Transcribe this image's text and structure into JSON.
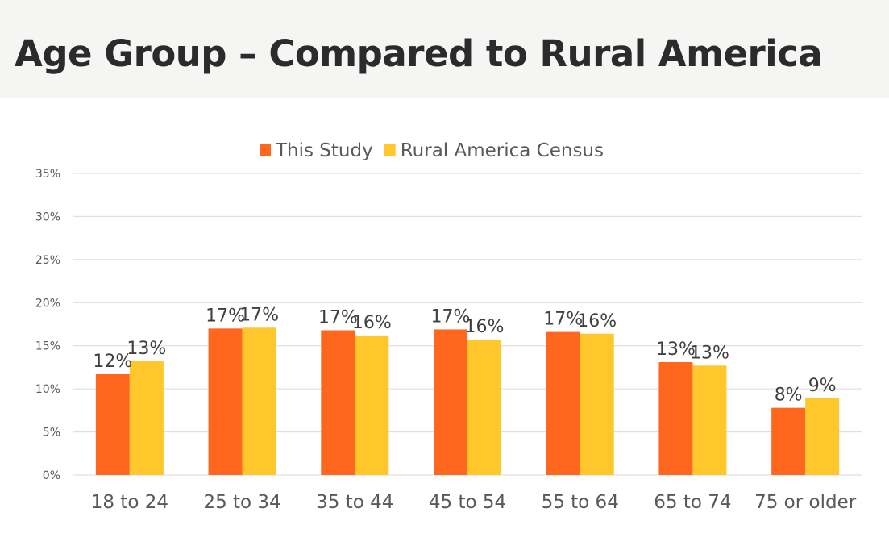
{
  "page": {
    "title": "Age Group – Compared to Rural America"
  },
  "colors": {
    "this_study": "#ff671f",
    "rural_census": "#ffc72c"
  },
  "chart_data": {
    "type": "bar",
    "title": "",
    "xlabel": "",
    "ylabel": "",
    "ylim": [
      0,
      35
    ],
    "yticks": [
      "0%",
      "5%",
      "10%",
      "15%",
      "20%",
      "25%",
      "30%",
      "35%"
    ],
    "grid": true,
    "legend_position": "top",
    "categories": [
      "18 to 24",
      "25 to 34",
      "35 to 44",
      "45 to 54",
      "55 to 64",
      "65 to 74",
      "75 or older"
    ],
    "series": [
      {
        "name": "This Study",
        "values": [
          11.7,
          17.0,
          16.8,
          16.9,
          16.6,
          13.1,
          7.8
        ],
        "labels": [
          "12%",
          "17%",
          "17%",
          "17%",
          "17%",
          "13%",
          "8%"
        ]
      },
      {
        "name": "Rural America Census",
        "values": [
          13.2,
          17.1,
          16.2,
          15.7,
          16.4,
          12.7,
          8.9
        ],
        "labels": [
          "13%",
          "17%",
          "16%",
          "16%",
          "16%",
          "13%",
          "9%"
        ]
      }
    ]
  }
}
